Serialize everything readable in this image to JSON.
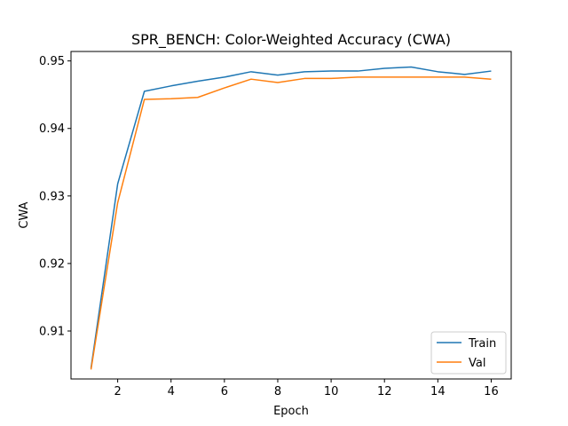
{
  "chart_data": {
    "type": "line",
    "title": "SPR_BENCH: Color-Weighted Accuracy (CWA)",
    "xlabel": "Epoch",
    "ylabel": "CWA",
    "xlim": [
      0.25,
      16.75
    ],
    "ylim": [
      0.9029,
      0.9514
    ],
    "x_ticks": [
      2,
      4,
      6,
      8,
      10,
      12,
      14,
      16
    ],
    "y_ticks": [
      0.91,
      0.92,
      0.93,
      0.94,
      0.95
    ],
    "grid": false,
    "legend_position": "lower-right",
    "x": [
      1,
      2,
      3,
      4,
      5,
      6,
      7,
      8,
      9,
      10,
      11,
      12,
      13,
      14,
      15,
      16
    ],
    "series": [
      {
        "name": "Train",
        "color": "#1f77b4",
        "values": [
          0.9045,
          0.9318,
          0.9455,
          0.9463,
          0.947,
          0.9476,
          0.9484,
          0.9479,
          0.9484,
          0.9485,
          0.9485,
          0.9489,
          0.9491,
          0.9484,
          0.948,
          0.9485
        ]
      },
      {
        "name": "Val",
        "color": "#ff7f0e",
        "values": [
          0.9043,
          0.929,
          0.9443,
          0.9444,
          0.9446,
          0.946,
          0.9473,
          0.9468,
          0.9474,
          0.9474,
          0.9476,
          0.9476,
          0.9476,
          0.9476,
          0.9476,
          0.9473
        ]
      }
    ]
  }
}
